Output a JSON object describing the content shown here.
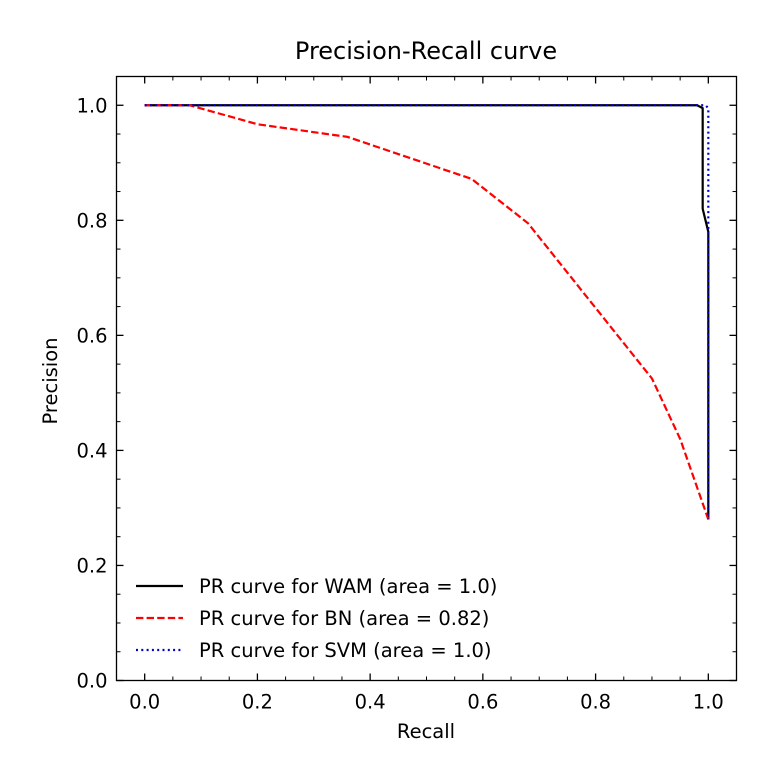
{
  "chart_data": {
    "type": "line",
    "title": "Precision-Recall curve",
    "xlabel": "Recall",
    "ylabel": "Precision",
    "xlim": [
      -0.05,
      1.05
    ],
    "ylim": [
      0.0,
      1.05
    ],
    "xticks": [
      0.0,
      0.2,
      0.4,
      0.6,
      0.8,
      1.0
    ],
    "xtick_labels": [
      "0.0",
      "0.2",
      "0.4",
      "0.6",
      "0.8",
      "1.0"
    ],
    "yticks": [
      0.0,
      0.2,
      0.4,
      0.6,
      0.8,
      1.0
    ],
    "ytick_labels": [
      "0.0",
      "0.2",
      "0.4",
      "0.6",
      "0.8",
      "1.0"
    ],
    "minor_ticks": true,
    "grid": false,
    "legend_position": "lower-left",
    "series": [
      {
        "name": "PR curve for WAM (area = 1.0)",
        "color": "#000000",
        "style": "solid",
        "x": [
          0.0,
          0.98,
          0.99,
          0.99,
          0.995,
          1.0,
          1.0
        ],
        "y": [
          1.0,
          1.0,
          0.995,
          0.82,
          0.8,
          0.78,
          0.28
        ]
      },
      {
        "name": "PR curve for BN (area = 0.82)",
        "color": "#ff0000",
        "style": "dashed",
        "x": [
          0.0,
          0.08,
          0.2,
          0.36,
          0.58,
          0.68,
          0.9,
          0.95,
          1.0
        ],
        "y": [
          1.0,
          1.0,
          0.967,
          0.945,
          0.872,
          0.795,
          0.525,
          0.42,
          0.28
        ]
      },
      {
        "name": "PR curve for SVM (area = 1.0)",
        "color": "#0000cc",
        "style": "dotted",
        "x": [
          0.0,
          0.995,
          1.0,
          1.0
        ],
        "y": [
          1.0,
          1.0,
          0.995,
          0.28
        ]
      }
    ]
  }
}
